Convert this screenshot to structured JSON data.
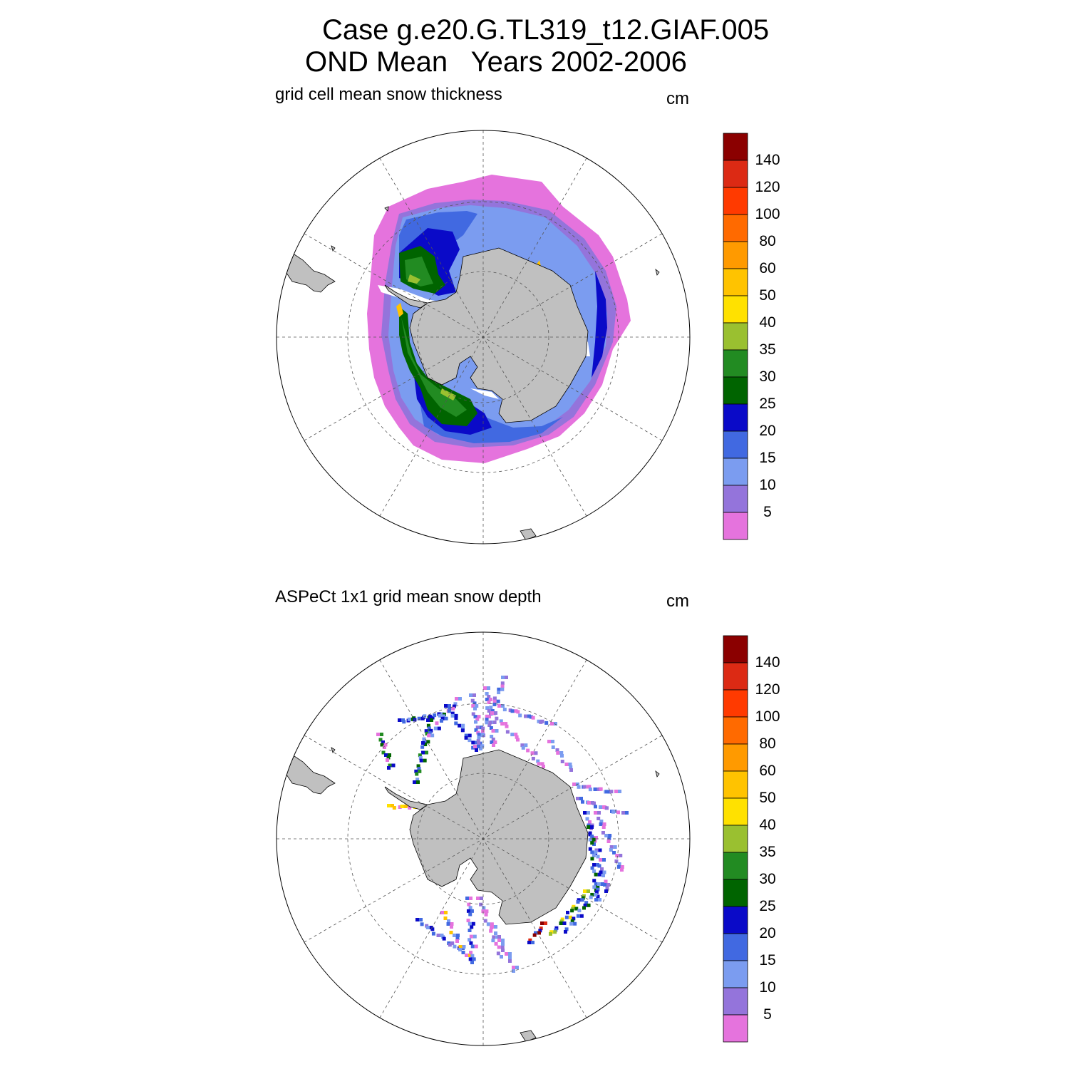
{
  "header": {
    "title_line1": "Case g.e20.G.TL319_t12.GIAF.005",
    "title_line2": "OND Mean   Years 2002-2006"
  },
  "panels": [
    {
      "id": "model",
      "left_label": "grid cell mean snow thickness",
      "units": "cm"
    },
    {
      "id": "obs",
      "left_label": "ASPeCt 1x1 grid mean snow depth",
      "units": "cm"
    }
  ],
  "colorbar": {
    "levels": [
      5,
      10,
      15,
      20,
      25,
      30,
      35,
      40,
      50,
      60,
      80,
      100,
      120,
      140
    ],
    "labels": [
      "5",
      "10",
      "15",
      "20",
      "25",
      "30",
      "35",
      "40",
      "50",
      "60",
      "80",
      "100",
      "120",
      "140"
    ],
    "colors": [
      "#e573dd",
      "#9474db",
      "#7b9cf0",
      "#4169e1",
      "#0a0ac8",
      "#006400",
      "#228b22",
      "#9ac030",
      "#ffe100",
      "#ffc300",
      "#ff9a00",
      "#ff6a00",
      "#ff3a00",
      "#dc2a14",
      "#8b0000"
    ]
  },
  "map_colors": {
    "land": "#c0c0c0",
    "grid": "#555555",
    "border": "#000000"
  }
}
